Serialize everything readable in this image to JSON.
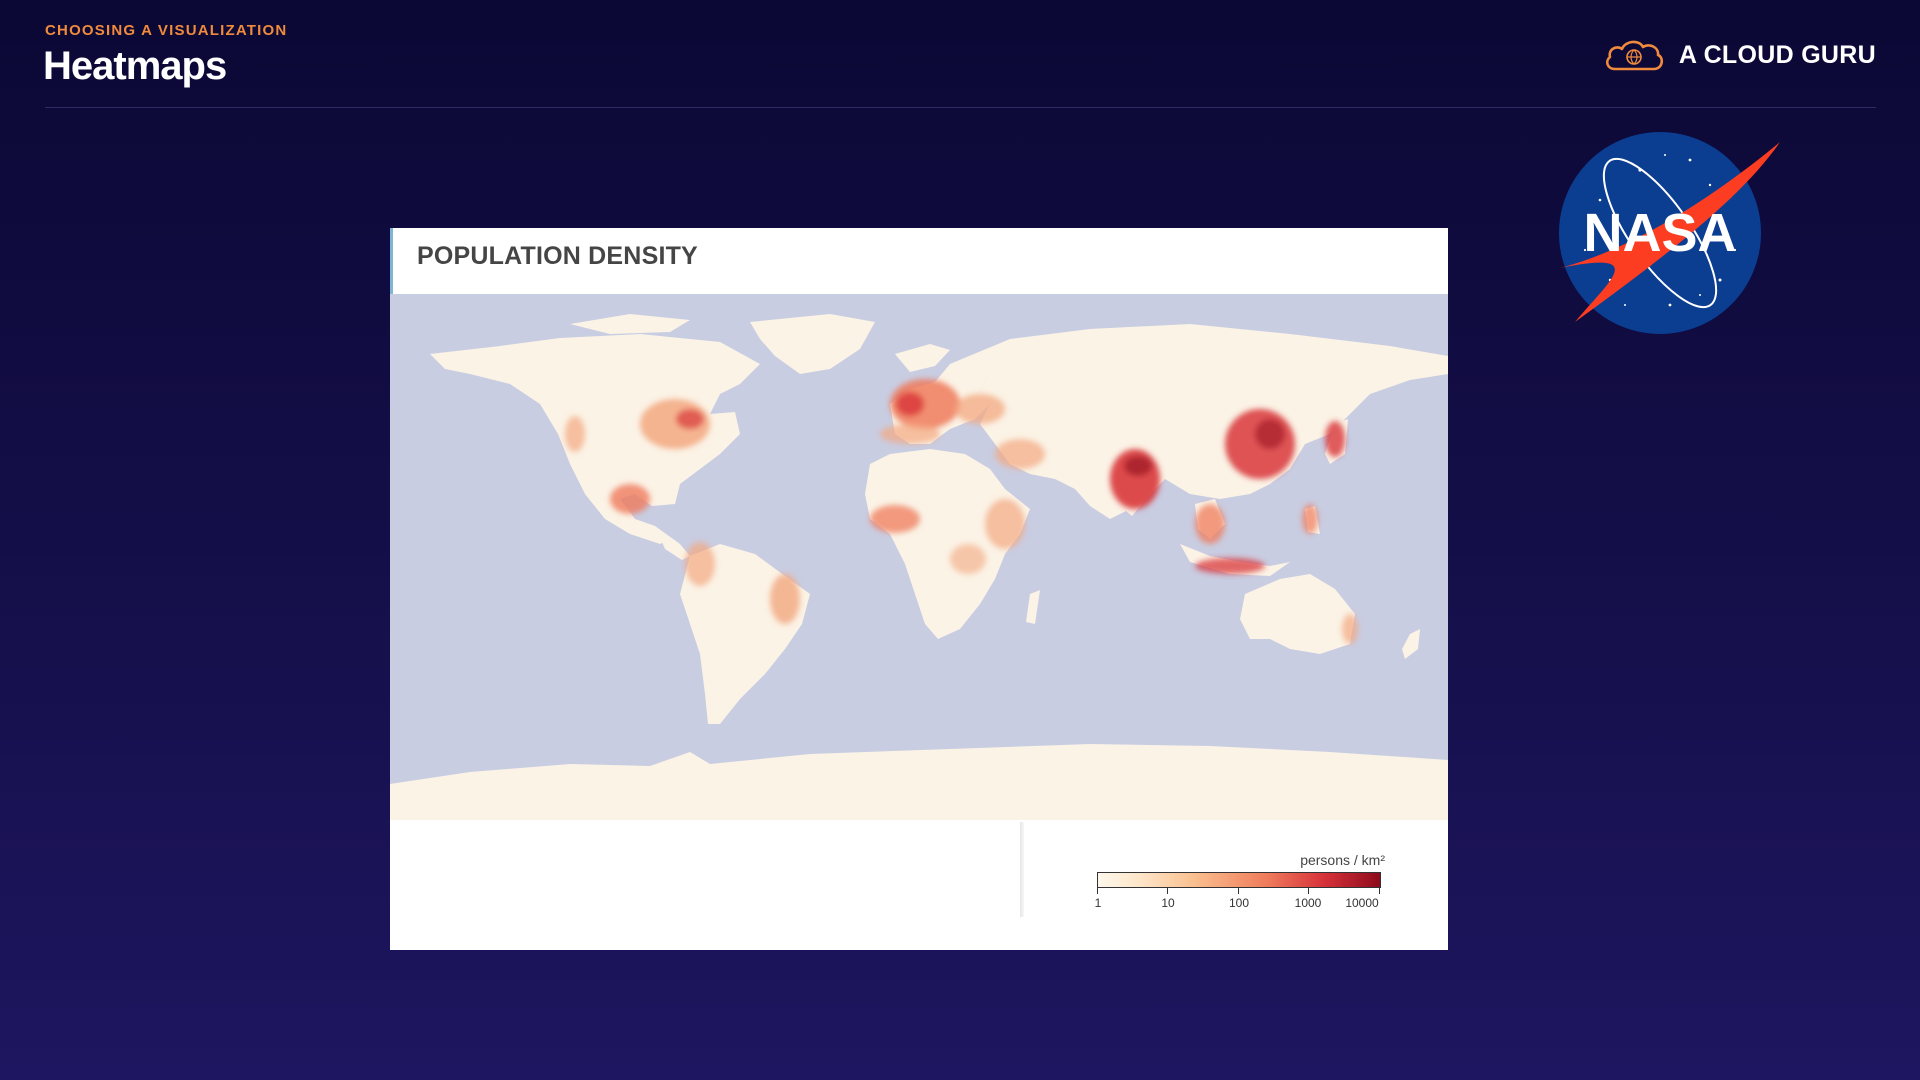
{
  "header": {
    "kicker": "CHOOSING A VISUALIZATION",
    "title": "Heatmaps"
  },
  "brand": {
    "name": "A CLOUD GURU",
    "icon": "cloud-guru-icon",
    "accent": "#f08a3c"
  },
  "partner_logo": {
    "text": "NASA",
    "icon": "nasa-meatball-logo"
  },
  "figure": {
    "title": "POPULATION DENSITY",
    "legend": {
      "unit": "persons / km²",
      "ticks": [
        "1",
        "10",
        "100",
        "1000",
        "10000"
      ]
    },
    "colors": {
      "ocean": "#c9cde2",
      "land_low": "#fbf3e6",
      "mid": "#f3a880",
      "high": "#d9363a",
      "max": "#8e0a1c"
    }
  }
}
